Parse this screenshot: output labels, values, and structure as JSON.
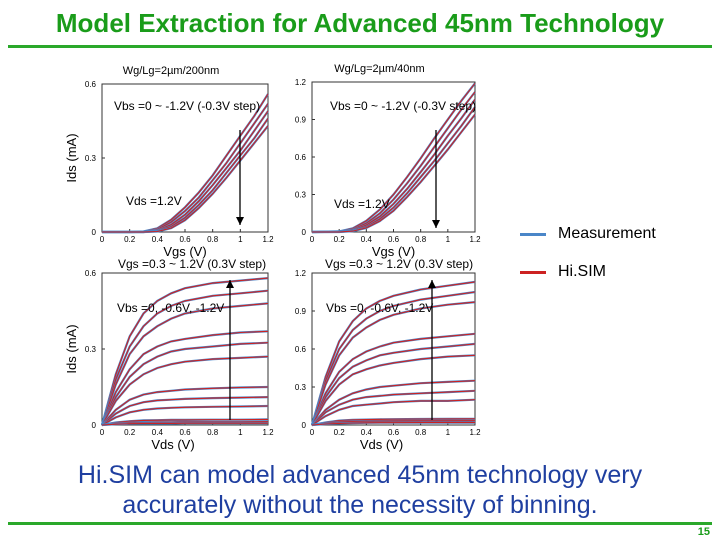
{
  "slide": {
    "title": "Model Extraction for Advanced 45nm Technology",
    "conclusion_line1": "Hi.SIM can model advanced 45nm technology very",
    "conclusion_line2": "accurately without the necessity of binning.",
    "page_number": "15",
    "accent_color": "#1a9c1a",
    "text_color": "#1f3fa0"
  },
  "legend": [
    {
      "label": "Measurement",
      "color": "#4a86c8"
    },
    {
      "label": "Hi.SIM",
      "color": "#cc2222"
    }
  ],
  "chart_data": [
    {
      "type": "line",
      "title": "Wg/Lg=2µm/200nm",
      "xlabel": "Vgs (V)",
      "ylabel": "Ids (mA)",
      "xlim": [
        0,
        1.2
      ],
      "ylim": [
        0,
        0.6
      ],
      "xticks": [
        "0",
        "0.2",
        "0.4",
        "0.6",
        "0.8",
        "1",
        "1.2"
      ],
      "yticks": [
        "0",
        "0.3",
        "0.6"
      ],
      "annotations": [
        "Vbs =0 ~ -1.2V (-0.3V step)",
        "Vds =1.2V"
      ],
      "series": [
        {
          "x": [
            0,
            0.2,
            0.3,
            0.4,
            0.5,
            0.6,
            0.7,
            0.8,
            0.9,
            1.0,
            1.1,
            1.2
          ],
          "values": [
            0,
            0,
            0.002,
            0.015,
            0.05,
            0.1,
            0.16,
            0.23,
            0.31,
            0.39,
            0.47,
            0.56
          ]
        },
        {
          "x": [
            0,
            0.2,
            0.3,
            0.4,
            0.5,
            0.6,
            0.7,
            0.8,
            0.9,
            1.0,
            1.1,
            1.2
          ],
          "values": [
            0,
            0,
            0.001,
            0.01,
            0.04,
            0.085,
            0.14,
            0.21,
            0.28,
            0.36,
            0.44,
            0.52
          ]
        },
        {
          "x": [
            0,
            0.2,
            0.3,
            0.4,
            0.5,
            0.6,
            0.7,
            0.8,
            0.9,
            1.0,
            1.1,
            1.2
          ],
          "values": [
            0,
            0,
            0,
            0.006,
            0.03,
            0.07,
            0.125,
            0.19,
            0.26,
            0.33,
            0.41,
            0.49
          ]
        },
        {
          "x": [
            0,
            0.2,
            0.3,
            0.4,
            0.5,
            0.6,
            0.7,
            0.8,
            0.9,
            1.0,
            1.1,
            1.2
          ],
          "values": [
            0,
            0,
            0,
            0.004,
            0.022,
            0.058,
            0.11,
            0.17,
            0.24,
            0.31,
            0.38,
            0.46
          ]
        },
        {
          "x": [
            0,
            0.2,
            0.3,
            0.4,
            0.5,
            0.6,
            0.7,
            0.8,
            0.9,
            1.0,
            1.1,
            1.2
          ],
          "values": [
            0,
            0,
            0,
            0.002,
            0.016,
            0.048,
            0.097,
            0.155,
            0.22,
            0.29,
            0.36,
            0.43
          ]
        }
      ]
    },
    {
      "type": "line",
      "title": "Wg/Lg=2µm/40nm",
      "xlabel": "Vgs (V)",
      "ylabel": "",
      "xlim": [
        0,
        1.2
      ],
      "ylim": [
        0,
        1.2
      ],
      "xticks": [
        "0",
        "0.2",
        "0.4",
        "0.6",
        "0.8",
        "1",
        "1.2"
      ],
      "yticks": [
        "0",
        "0.3",
        "0.6",
        "0.9",
        "1.2"
      ],
      "annotations": [
        "Vbs =0 ~ -1.2V (-0.3V step)",
        "Vds =1.2V"
      ],
      "series": [
        {
          "x": [
            0,
            0.2,
            0.3,
            0.4,
            0.5,
            0.6,
            0.7,
            0.8,
            0.9,
            1.0,
            1.1,
            1.2
          ],
          "values": [
            0,
            0.005,
            0.03,
            0.09,
            0.18,
            0.3,
            0.44,
            0.59,
            0.75,
            0.9,
            1.05,
            1.19
          ]
        },
        {
          "x": [
            0,
            0.2,
            0.3,
            0.4,
            0.5,
            0.6,
            0.7,
            0.8,
            0.9,
            1.0,
            1.1,
            1.2
          ],
          "values": [
            0,
            0.003,
            0.02,
            0.07,
            0.15,
            0.26,
            0.39,
            0.53,
            0.68,
            0.83,
            0.98,
            1.12
          ]
        },
        {
          "x": [
            0,
            0.2,
            0.3,
            0.4,
            0.5,
            0.6,
            0.7,
            0.8,
            0.9,
            1.0,
            1.1,
            1.2
          ],
          "values": [
            0,
            0.002,
            0.014,
            0.055,
            0.125,
            0.225,
            0.345,
            0.48,
            0.62,
            0.77,
            0.91,
            1.06
          ]
        },
        {
          "x": [
            0,
            0.2,
            0.3,
            0.4,
            0.5,
            0.6,
            0.7,
            0.8,
            0.9,
            1.0,
            1.1,
            1.2
          ],
          "values": [
            0,
            0.001,
            0.01,
            0.042,
            0.105,
            0.195,
            0.31,
            0.44,
            0.57,
            0.71,
            0.85,
            1.0
          ]
        },
        {
          "x": [
            0,
            0.2,
            0.3,
            0.4,
            0.5,
            0.6,
            0.7,
            0.8,
            0.9,
            1.0,
            1.1,
            1.2
          ],
          "values": [
            0,
            0,
            0.007,
            0.033,
            0.088,
            0.17,
            0.28,
            0.4,
            0.53,
            0.66,
            0.8,
            0.94
          ]
        }
      ]
    },
    {
      "type": "line",
      "title": "",
      "xlabel": "Vds (V)",
      "ylabel": "Ids (mA)",
      "xlim": [
        0,
        1.2
      ],
      "ylim": [
        0,
        0.6
      ],
      "xticks": [
        "0",
        "0.2",
        "0.4",
        "0.6",
        "0.8",
        "1",
        "1.2"
      ],
      "yticks": [
        "0",
        "0.3",
        "0.6"
      ],
      "annotations": [
        "Vgs =0.3 ~ 1.2V (0.3V step)",
        "Vbs =0, -0.6V, -1.2V"
      ],
      "series": [
        {
          "x": [
            0,
            0.1,
            0.2,
            0.3,
            0.4,
            0.5,
            0.6,
            0.8,
            1.0,
            1.2
          ],
          "values": [
            0,
            0.2,
            0.35,
            0.44,
            0.49,
            0.52,
            0.54,
            0.56,
            0.57,
            0.58
          ]
        },
        {
          "x": [
            0,
            0.1,
            0.2,
            0.3,
            0.4,
            0.5,
            0.6,
            0.8,
            1.0,
            1.2
          ],
          "values": [
            0,
            0.18,
            0.31,
            0.39,
            0.44,
            0.47,
            0.49,
            0.51,
            0.52,
            0.53
          ]
        },
        {
          "x": [
            0,
            0.1,
            0.2,
            0.3,
            0.4,
            0.5,
            0.6,
            0.8,
            1.0,
            1.2
          ],
          "values": [
            0,
            0.16,
            0.28,
            0.35,
            0.39,
            0.42,
            0.44,
            0.46,
            0.47,
            0.48
          ]
        },
        {
          "x": [
            0,
            0.1,
            0.2,
            0.3,
            0.4,
            0.5,
            0.6,
            0.8,
            1.0,
            1.2
          ],
          "values": [
            0,
            0.13,
            0.22,
            0.28,
            0.31,
            0.33,
            0.34,
            0.355,
            0.365,
            0.37
          ]
        },
        {
          "x": [
            0,
            0.1,
            0.2,
            0.3,
            0.4,
            0.5,
            0.6,
            0.8,
            1.0,
            1.2
          ],
          "values": [
            0,
            0.11,
            0.19,
            0.24,
            0.27,
            0.29,
            0.3,
            0.31,
            0.32,
            0.325
          ]
        },
        {
          "x": [
            0,
            0.1,
            0.2,
            0.3,
            0.4,
            0.5,
            0.6,
            0.8,
            1.0,
            1.2
          ],
          "values": [
            0,
            0.095,
            0.16,
            0.2,
            0.225,
            0.24,
            0.25,
            0.26,
            0.265,
            0.27
          ]
        },
        {
          "x": [
            0,
            0.1,
            0.2,
            0.3,
            0.4,
            0.5,
            0.6,
            0.8,
            1.0,
            1.2
          ],
          "values": [
            0,
            0.06,
            0.1,
            0.12,
            0.13,
            0.135,
            0.14,
            0.145,
            0.148,
            0.15
          ]
        },
        {
          "x": [
            0,
            0.1,
            0.2,
            0.3,
            0.4,
            0.5,
            0.6,
            0.8,
            1.0,
            1.2
          ],
          "values": [
            0,
            0.045,
            0.075,
            0.09,
            0.097,
            0.1,
            0.103,
            0.106,
            0.108,
            0.11
          ]
        },
        {
          "x": [
            0,
            0.1,
            0.2,
            0.3,
            0.4,
            0.5,
            0.6,
            0.8,
            1.0,
            1.2
          ],
          "values": [
            0,
            0.03,
            0.05,
            0.06,
            0.065,
            0.068,
            0.07,
            0.072,
            0.073,
            0.075
          ]
        },
        {
          "x": [
            0,
            0.1,
            0.2,
            0.3,
            0.4,
            0.5,
            0.6,
            0.8,
            1.0,
            1.2
          ],
          "values": [
            0,
            0.01,
            0.015,
            0.018,
            0.019,
            0.02,
            0.02,
            0.021,
            0.021,
            0.022
          ]
        },
        {
          "x": [
            0,
            0.1,
            0.2,
            0.3,
            0.4,
            0.5,
            0.6,
            0.8,
            1.0,
            1.2
          ],
          "values": [
            0,
            0.006,
            0.009,
            0.01,
            0.011,
            0.011,
            0.012,
            0.012,
            0.012,
            0.013
          ]
        },
        {
          "x": [
            0,
            0.1,
            0.2,
            0.3,
            0.4,
            0.5,
            0.6,
            0.8,
            1.0,
            1.2
          ],
          "values": [
            0,
            0.003,
            0.005,
            0.006,
            0.006,
            0.006,
            0.007,
            0.007,
            0.007,
            0.007
          ]
        }
      ]
    },
    {
      "type": "line",
      "title": "",
      "xlabel": "Vds (V)",
      "ylabel": "",
      "xlim": [
        0,
        1.2
      ],
      "ylim": [
        0,
        1.2
      ],
      "xticks": [
        "0",
        "0.2",
        "0.4",
        "0.6",
        "0.8",
        "1",
        "1.2"
      ],
      "yticks": [
        "0",
        "0.3",
        "0.6",
        "0.9",
        "1.2"
      ],
      "annotations": [
        "Vgs =0.3 ~ 1.2V (0.3V step)",
        "Vbs =0, -0.6V, -1.2V"
      ],
      "series": [
        {
          "x": [
            0,
            0.1,
            0.2,
            0.3,
            0.4,
            0.5,
            0.6,
            0.8,
            1.0,
            1.2
          ],
          "values": [
            0,
            0.38,
            0.66,
            0.82,
            0.92,
            0.98,
            1.02,
            1.07,
            1.1,
            1.13
          ]
        },
        {
          "x": [
            0,
            0.1,
            0.2,
            0.3,
            0.4,
            0.5,
            0.6,
            0.8,
            1.0,
            1.2
          ],
          "values": [
            0,
            0.35,
            0.6,
            0.75,
            0.84,
            0.9,
            0.94,
            0.99,
            1.02,
            1.05
          ]
        },
        {
          "x": [
            0,
            0.1,
            0.2,
            0.3,
            0.4,
            0.5,
            0.6,
            0.8,
            1.0,
            1.2
          ],
          "values": [
            0,
            0.32,
            0.55,
            0.69,
            0.77,
            0.83,
            0.87,
            0.92,
            0.95,
            0.97
          ]
        },
        {
          "x": [
            0,
            0.1,
            0.2,
            0.3,
            0.4,
            0.5,
            0.6,
            0.8,
            1.0,
            1.2
          ],
          "values": [
            0,
            0.25,
            0.42,
            0.52,
            0.58,
            0.62,
            0.65,
            0.68,
            0.7,
            0.72
          ]
        },
        {
          "x": [
            0,
            0.1,
            0.2,
            0.3,
            0.4,
            0.5,
            0.6,
            0.8,
            1.0,
            1.2
          ],
          "values": [
            0,
            0.22,
            0.37,
            0.46,
            0.51,
            0.55,
            0.57,
            0.6,
            0.62,
            0.64
          ]
        },
        {
          "x": [
            0,
            0.1,
            0.2,
            0.3,
            0.4,
            0.5,
            0.6,
            0.8,
            1.0,
            1.2
          ],
          "values": [
            0,
            0.19,
            0.32,
            0.4,
            0.44,
            0.47,
            0.49,
            0.52,
            0.54,
            0.55
          ]
        },
        {
          "x": [
            0,
            0.1,
            0.2,
            0.3,
            0.4,
            0.5,
            0.6,
            0.8,
            1.0,
            1.2
          ],
          "values": [
            0,
            0.12,
            0.2,
            0.25,
            0.28,
            0.3,
            0.31,
            0.33,
            0.34,
            0.35
          ]
        },
        {
          "x": [
            0,
            0.1,
            0.2,
            0.3,
            0.4,
            0.5,
            0.6,
            0.8,
            1.0,
            1.2
          ],
          "values": [
            0,
            0.1,
            0.16,
            0.2,
            0.22,
            0.23,
            0.24,
            0.25,
            0.26,
            0.27
          ]
        },
        {
          "x": [
            0,
            0.1,
            0.2,
            0.3,
            0.4,
            0.5,
            0.6,
            0.8,
            1.0,
            1.2
          ],
          "values": [
            0,
            0.07,
            0.12,
            0.15,
            0.16,
            0.17,
            0.18,
            0.19,
            0.19,
            0.2
          ]
        },
        {
          "x": [
            0,
            0.1,
            0.2,
            0.3,
            0.4,
            0.5,
            0.6,
            0.8,
            1.0,
            1.2
          ],
          "values": [
            0,
            0.02,
            0.035,
            0.04,
            0.043,
            0.045,
            0.046,
            0.047,
            0.048,
            0.049
          ]
        },
        {
          "x": [
            0,
            0.1,
            0.2,
            0.3,
            0.4,
            0.5,
            0.6,
            0.8,
            1.0,
            1.2
          ],
          "values": [
            0,
            0.014,
            0.024,
            0.028,
            0.03,
            0.031,
            0.032,
            0.033,
            0.033,
            0.034
          ]
        },
        {
          "x": [
            0,
            0.1,
            0.2,
            0.3,
            0.4,
            0.5,
            0.6,
            0.8,
            1.0,
            1.2
          ],
          "values": [
            0,
            0.008,
            0.013,
            0.016,
            0.017,
            0.018,
            0.018,
            0.019,
            0.019,
            0.019
          ]
        }
      ]
    }
  ]
}
